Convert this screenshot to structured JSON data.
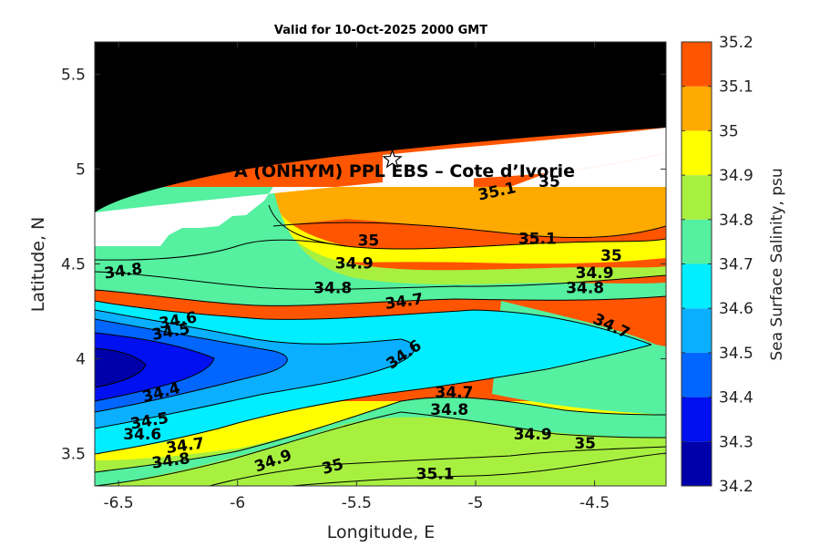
{
  "title": "Valid for 10-Oct-2025 2000 GMT",
  "overlay_text": "A (ONHYM) PPL EBS  – Cote d’Ivorie",
  "colors": {
    "land": "#000000",
    "nodata": "#ffffff",
    "marker": "#ffffff"
  },
  "chart_data": {
    "type": "heatmap",
    "title": "Valid for 10-Oct-2025 2000 GMT",
    "xlabel": "Longitude, E",
    "ylabel": "Latitude, N",
    "xlim": [
      -6.6,
      -4.2
    ],
    "ylim": [
      3.33,
      5.67
    ],
    "x_ticks": [
      -6.5,
      -6,
      -5.5,
      -5,
      -4.5
    ],
    "x_tick_labels": [
      "-6.5",
      "-6",
      "-5.5",
      "-5",
      "-4.5"
    ],
    "y_ticks": [
      3.5,
      4,
      4.5,
      5,
      5.5
    ],
    "y_tick_labels": [
      "3.5",
      "4",
      "4.5",
      "5",
      "5.5"
    ],
    "colorbar": {
      "label": "Sea Surface Salinity, psu",
      "levels": [
        34.2,
        34.3,
        34.4,
        34.5,
        34.6,
        34.7,
        34.8,
        34.9,
        35.0,
        35.1,
        35.2
      ],
      "tick_labels": [
        "34.2",
        "34.3",
        "34.4",
        "34.5",
        "34.6",
        "34.7",
        "34.8",
        "34.9",
        "35",
        "35.1",
        "35.2"
      ],
      "colors": [
        "#0000aa",
        "#0010f0",
        "#0066ff",
        "#0ab0ff",
        "#00eeff",
        "#55f0a0",
        "#a8f040",
        "#ffff00",
        "#ffaa00",
        "#ff5500"
      ]
    },
    "marker": {
      "type": "star",
      "lon": -5.35,
      "lat": 5.05
    },
    "contour_labels": [
      {
        "text": "34.8",
        "lon": -6.48,
        "lat": 4.46,
        "angle": -8
      },
      {
        "text": "34.6",
        "lon": -6.25,
        "lat": 4.2,
        "angle": -10
      },
      {
        "text": "34.5",
        "lon": -6.28,
        "lat": 4.14,
        "angle": -10
      },
      {
        "text": "34.4",
        "lon": -6.32,
        "lat": 3.82,
        "angle": -15
      },
      {
        "text": "34.5",
        "lon": -6.37,
        "lat": 3.67,
        "angle": -10
      },
      {
        "text": "34.6",
        "lon": -6.4,
        "lat": 3.6,
        "angle": 0
      },
      {
        "text": "34.7",
        "lon": -6.22,
        "lat": 3.54,
        "angle": -8
      },
      {
        "text": "34.8",
        "lon": -6.28,
        "lat": 3.46,
        "angle": -8
      },
      {
        "text": "34.9",
        "lon": -5.85,
        "lat": 3.46,
        "angle": -20
      },
      {
        "text": "35",
        "lon": -5.6,
        "lat": 3.43,
        "angle": -15
      },
      {
        "text": "35.1",
        "lon": -5.17,
        "lat": 3.39,
        "angle": 0
      },
      {
        "text": "34.6",
        "lon": -5.3,
        "lat": 4.02,
        "angle": -35
      },
      {
        "text": "34.7",
        "lon": -5.09,
        "lat": 3.82,
        "angle": 0
      },
      {
        "text": "34.8",
        "lon": -5.11,
        "lat": 3.73,
        "angle": 0
      },
      {
        "text": "34.9",
        "lon": -4.76,
        "lat": 3.6,
        "angle": 0
      },
      {
        "text": "35",
        "lon": -4.54,
        "lat": 3.55,
        "angle": 0
      },
      {
        "text": "34.7",
        "lon": -5.3,
        "lat": 4.3,
        "angle": -8
      },
      {
        "text": "34.8",
        "lon": -5.6,
        "lat": 4.37,
        "angle": 0
      },
      {
        "text": "34.9",
        "lon": -5.51,
        "lat": 4.5,
        "angle": 0
      },
      {
        "text": "35",
        "lon": -5.45,
        "lat": 4.62,
        "angle": 0
      },
      {
        "text": "34.7",
        "lon": -4.43,
        "lat": 4.17,
        "angle": 25
      },
      {
        "text": "34.8",
        "lon": -4.54,
        "lat": 4.37,
        "angle": 0
      },
      {
        "text": "34.9",
        "lon": -4.5,
        "lat": 4.45,
        "angle": 0
      },
      {
        "text": "35",
        "lon": -4.43,
        "lat": 4.54,
        "angle": 0
      },
      {
        "text": "35.1",
        "lon": -4.74,
        "lat": 4.63,
        "angle": 0
      },
      {
        "text": "35.1",
        "lon": -4.91,
        "lat": 4.88,
        "angle": -12
      },
      {
        "text": "35",
        "lon": -4.69,
        "lat": 4.93,
        "angle": 0
      }
    ]
  }
}
